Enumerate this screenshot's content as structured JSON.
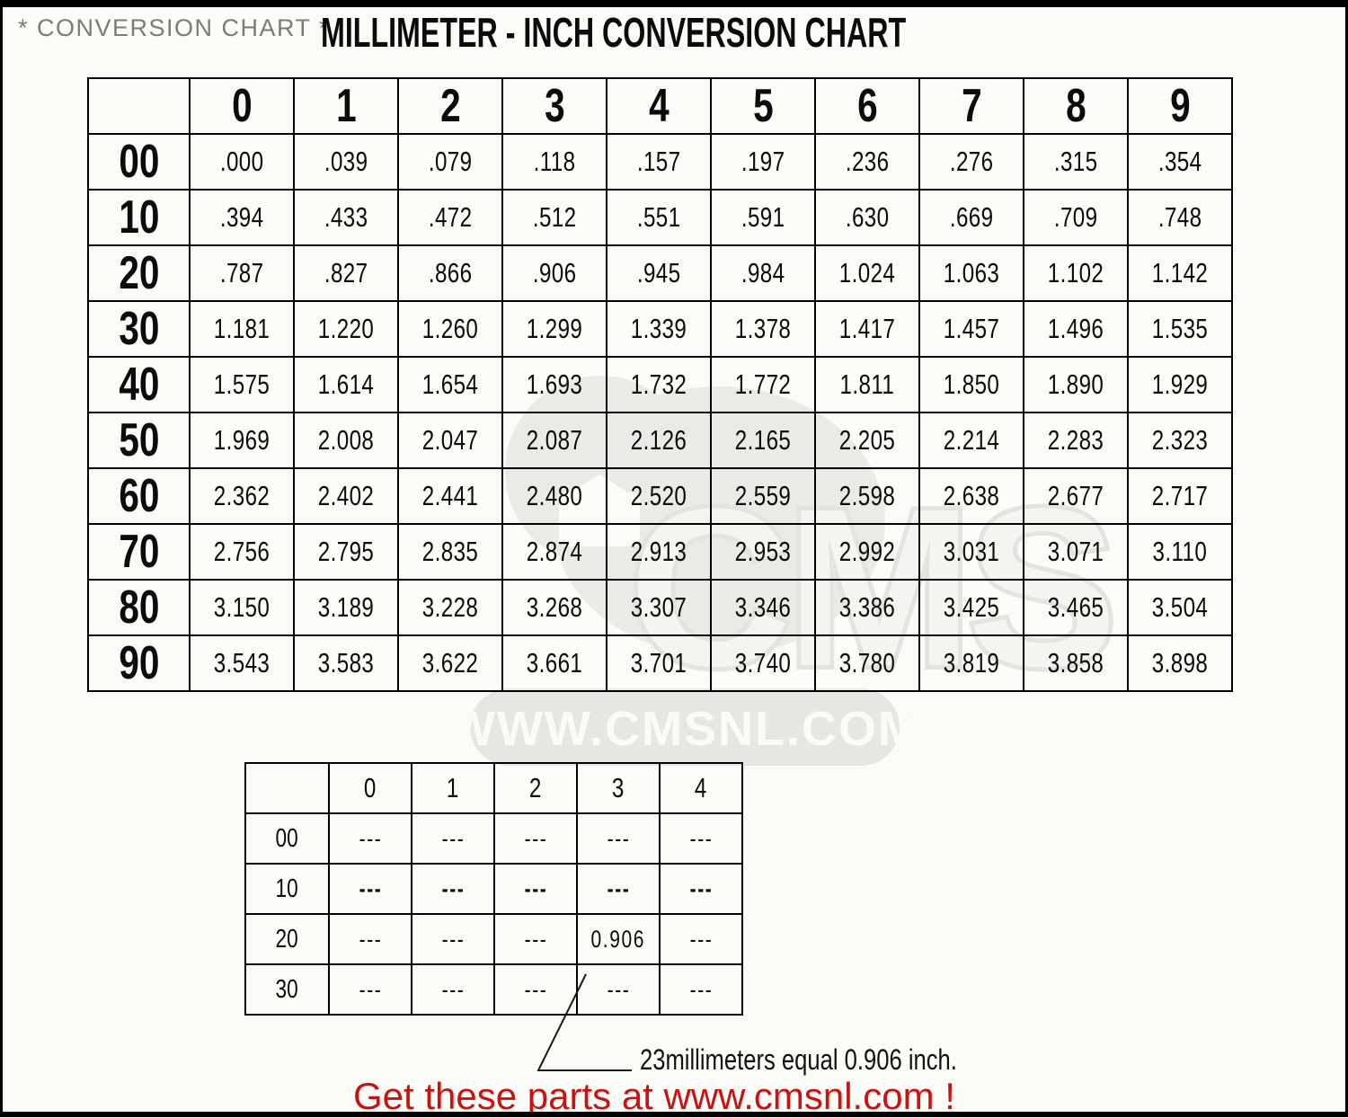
{
  "page": {
    "subtitle": "* CONVERSION CHART *",
    "title": "MILLIMETER - INCH CONVERSION CHART",
    "annotation": "23millimeters equal 0.906 inch.",
    "footer_promo": "Get these parts at www.cmsnl.com !",
    "watermark": {
      "logo": "CMS",
      "url_text": "WWW.CMSNL.COM"
    },
    "colors": {
      "promo_red": "#cc1111",
      "subtitle_gray": "#7b7b78",
      "watermark_gray": "#eaeae6",
      "border_black": "#000000",
      "background": "#fbfbf7"
    }
  },
  "chart_data": {
    "type": "table",
    "title": "MILLIMETER - INCH CONVERSION CHART",
    "description": "Millimeters to inches: row header = tens of mm, column header = units of mm, cell value = inches.",
    "main_table": {
      "col_headers": [
        "0",
        "1",
        "2",
        "3",
        "4",
        "5",
        "6",
        "7",
        "8",
        "9"
      ],
      "row_headers": [
        "00",
        "10",
        "20",
        "30",
        "40",
        "50",
        "60",
        "70",
        "80",
        "90"
      ],
      "rows": [
        [
          ".000",
          ".039",
          ".079",
          ".118",
          ".157",
          ".197",
          ".236",
          ".276",
          ".315",
          ".354"
        ],
        [
          ".394",
          ".433",
          ".472",
          ".512",
          ".551",
          ".591",
          ".630",
          ".669",
          ".709",
          ".748"
        ],
        [
          ".787",
          ".827",
          ".866",
          ".906",
          ".945",
          ".984",
          "1.024",
          "1.063",
          "1.102",
          "1.142"
        ],
        [
          "1.181",
          "1.220",
          "1.260",
          "1.299",
          "1.339",
          "1.378",
          "1.417",
          "1.457",
          "1.496",
          "1.535"
        ],
        [
          "1.575",
          "1.614",
          "1.654",
          "1.693",
          "1.732",
          "1.772",
          "1.811",
          "1.850",
          "1.890",
          "1.929"
        ],
        [
          "1.969",
          "2.008",
          "2.047",
          "2.087",
          "2.126",
          "2.165",
          "2.205",
          "2.214",
          "2.283",
          "2.323"
        ],
        [
          "2.362",
          "2.402",
          "2.441",
          "2.480",
          "2.520",
          "2.559",
          "2.598",
          "2.638",
          "2.677",
          "2.717"
        ],
        [
          "2.756",
          "2.795",
          "2.835",
          "2.874",
          "2.913",
          "2.953",
          "2.992",
          "3.031",
          "3.071",
          "3.110"
        ],
        [
          "3.150",
          "3.189",
          "3.228",
          "3.268",
          "3.307",
          "3.346",
          "3.386",
          "3.425",
          "3.465",
          "3.504"
        ],
        [
          "3.543",
          "3.583",
          "3.622",
          "3.661",
          "3.701",
          "3.740",
          "3.780",
          "3.819",
          "3.858",
          "3.898"
        ]
      ]
    },
    "example_table": {
      "col_headers": [
        "0",
        "1",
        "2",
        "3",
        "4"
      ],
      "row_headers": [
        "00",
        "10",
        "20",
        "30"
      ],
      "rows": [
        [
          "---",
          "---",
          "---",
          "---",
          "---"
        ],
        [
          "---",
          "---",
          "---",
          "---",
          "---"
        ],
        [
          "---",
          "---",
          "---",
          "0.906",
          "---"
        ],
        [
          "---",
          "---",
          "---",
          "---",
          "---"
        ]
      ],
      "bold_row_index": 1,
      "highlight_value": "0.906"
    }
  }
}
